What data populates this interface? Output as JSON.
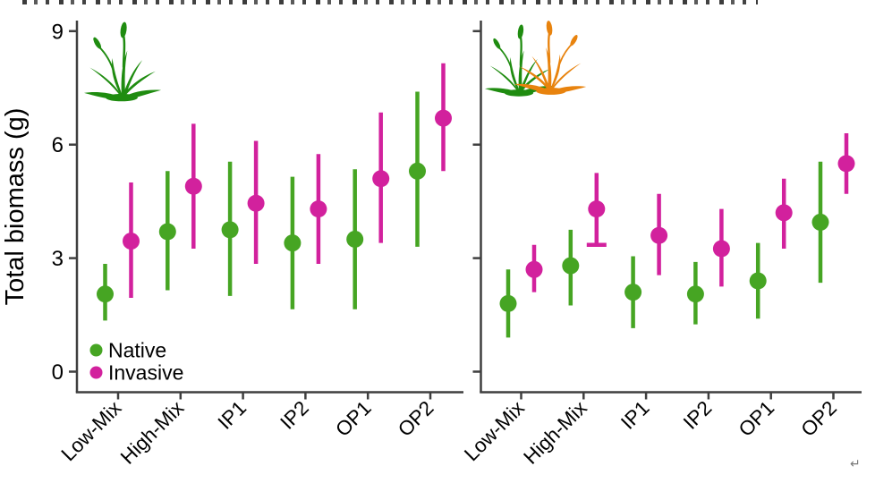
{
  "artifacts": {
    "return_mark": "↵",
    "top_text_clipped": true
  },
  "icons": {
    "left_panel": "native-grass-icon",
    "right_panel": "native-and-invasive-grass-icon",
    "grass_green": "#1f8c10",
    "grass_orange": "#e8830e"
  },
  "chart_data": {
    "type": "pointrange",
    "title": "",
    "ylabel": "Total biomass (g)",
    "ylim": [
      0,
      9.3
    ],
    "yticks": [
      0,
      3,
      6,
      9
    ],
    "categories": [
      "Low-Mix",
      "High-Mix",
      "IP1",
      "IP2",
      "OP1",
      "OP2"
    ],
    "grid": false,
    "axis_color": "#3f3f3f",
    "legend": {
      "position": "inside bottom-left of left panel",
      "items": [
        {
          "label": "Native",
          "color": "#46a523"
        },
        {
          "label": "Invasive",
          "color": "#d2219d"
        }
      ]
    },
    "panels": [
      {
        "name": "left",
        "icon": "native-grass-icon",
        "series": [
          {
            "name": "Native",
            "color": "#46a523",
            "points": [
              {
                "category": "Low-Mix",
                "mean": 2.05,
                "lo": 1.35,
                "hi": 2.85
              },
              {
                "category": "High-Mix",
                "mean": 3.7,
                "lo": 2.15,
                "hi": 5.3
              },
              {
                "category": "IP1",
                "mean": 3.75,
                "lo": 2.0,
                "hi": 5.55
              },
              {
                "category": "IP2",
                "mean": 3.4,
                "lo": 1.65,
                "hi": 5.15
              },
              {
                "category": "OP1",
                "mean": 3.5,
                "lo": 1.65,
                "hi": 5.35
              },
              {
                "category": "OP2",
                "mean": 5.3,
                "lo": 3.3,
                "hi": 7.4
              }
            ]
          },
          {
            "name": "Invasive",
            "color": "#d2219d",
            "points": [
              {
                "category": "Low-Mix",
                "mean": 3.45,
                "lo": 1.95,
                "hi": 5.0
              },
              {
                "category": "High-Mix",
                "mean": 4.9,
                "lo": 3.25,
                "hi": 6.55
              },
              {
                "category": "IP1",
                "mean": 4.45,
                "lo": 2.85,
                "hi": 6.1
              },
              {
                "category": "IP2",
                "mean": 4.3,
                "lo": 2.85,
                "hi": 5.75
              },
              {
                "category": "OP1",
                "mean": 5.1,
                "lo": 3.4,
                "hi": 6.85
              },
              {
                "category": "OP2",
                "mean": 6.7,
                "lo": 5.3,
                "hi": 8.15
              }
            ]
          }
        ]
      },
      {
        "name": "right",
        "icon": "native-and-invasive-grass-icon",
        "series": [
          {
            "name": "Native",
            "color": "#46a523",
            "points": [
              {
                "category": "Low-Mix",
                "mean": 1.8,
                "lo": 0.9,
                "hi": 2.7
              },
              {
                "category": "High-Mix",
                "mean": 2.8,
                "lo": 1.75,
                "hi": 3.75
              },
              {
                "category": "IP1",
                "mean": 2.1,
                "lo": 1.15,
                "hi": 3.05
              },
              {
                "category": "IP2",
                "mean": 2.05,
                "lo": 1.25,
                "hi": 2.9
              },
              {
                "category": "OP1",
                "mean": 2.4,
                "lo": 1.4,
                "hi": 3.4
              },
              {
                "category": "OP2",
                "mean": 3.95,
                "lo": 2.35,
                "hi": 5.55
              }
            ]
          },
          {
            "name": "Invasive",
            "color": "#d2219d",
            "points": [
              {
                "category": "Low-Mix",
                "mean": 2.7,
                "lo": 2.1,
                "hi": 3.35
              },
              {
                "category": "High-Mix",
                "mean": 4.3,
                "lo": 3.35,
                "hi": 5.25,
                "cap_low": true
              },
              {
                "category": "IP1",
                "mean": 3.6,
                "lo": 2.55,
                "hi": 4.7
              },
              {
                "category": "IP2",
                "mean": 3.25,
                "lo": 2.25,
                "hi": 4.3
              },
              {
                "category": "OP1",
                "mean": 4.2,
                "lo": 3.25,
                "hi": 5.1
              },
              {
                "category": "OP2",
                "mean": 5.5,
                "lo": 4.7,
                "hi": 6.3
              }
            ]
          }
        ]
      }
    ]
  }
}
